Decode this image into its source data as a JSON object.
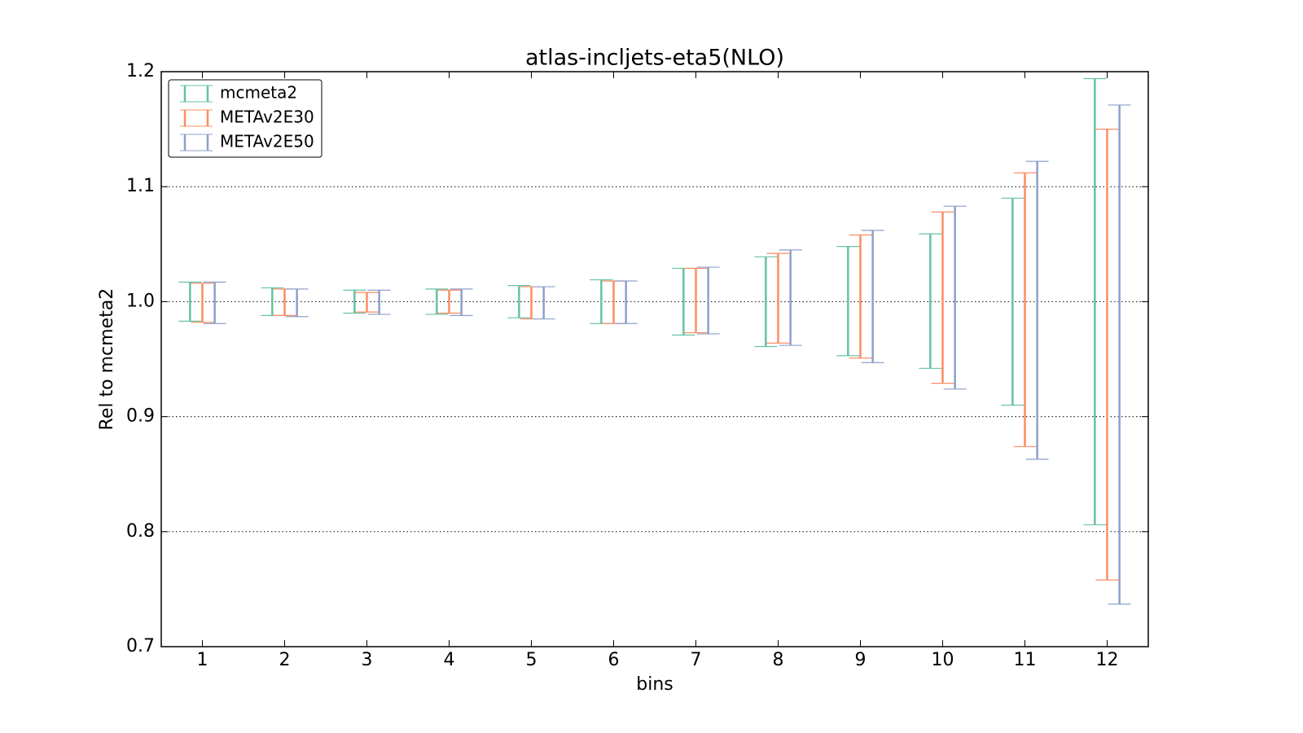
{
  "chart_data": {
    "type": "errorbar",
    "title": "atlas-incljets-eta5(NLO)",
    "x_label": "bins",
    "y_label": "Rel to mcmeta2",
    "x": [
      1,
      2,
      3,
      4,
      5,
      6,
      7,
      8,
      9,
      10,
      11,
      12
    ],
    "xlim": [
      0.5,
      12.5
    ],
    "xticks": [
      1,
      2,
      3,
      4,
      5,
      6,
      7,
      8,
      9,
      10,
      11,
      12
    ],
    "ylim": [
      0.7,
      1.2
    ],
    "yticks": [
      0.7,
      0.8,
      0.9,
      {
        "value": 1.0,
        "label": "1.0"
      },
      1.1,
      1.2
    ],
    "grid": true,
    "legend": "upper-left",
    "series": [
      {
        "name": "mcmeta2",
        "color": "#66c2a5",
        "upper": [
          1.017,
          1.012,
          1.01,
          1.011,
          1.014,
          1.019,
          1.029,
          1.039,
          1.048,
          1.059,
          1.09,
          1.194
        ],
        "lower": [
          0.983,
          0.988,
          0.99,
          0.989,
          0.986,
          0.981,
          0.971,
          0.961,
          0.953,
          0.942,
          0.91,
          0.806
        ]
      },
      {
        "name": "METAv2E30",
        "color": "#fc8d62",
        "upper": [
          1.016,
          1.011,
          1.008,
          1.01,
          1.013,
          1.018,
          1.029,
          1.042,
          1.058,
          1.078,
          1.112,
          1.15
        ],
        "lower": [
          0.982,
          0.988,
          0.991,
          0.99,
          0.985,
          0.981,
          0.973,
          0.964,
          0.951,
          0.929,
          0.874,
          0.758
        ]
      },
      {
        "name": "METAv2E50",
        "color": "#8da0cb",
        "upper": [
          1.017,
          1.011,
          1.01,
          1.011,
          1.013,
          1.018,
          1.03,
          1.045,
          1.062,
          1.083,
          1.122,
          1.171
        ],
        "lower": [
          0.981,
          0.987,
          0.989,
          0.988,
          0.985,
          0.981,
          0.972,
          0.962,
          0.947,
          0.924,
          0.863,
          0.737
        ]
      }
    ]
  }
}
